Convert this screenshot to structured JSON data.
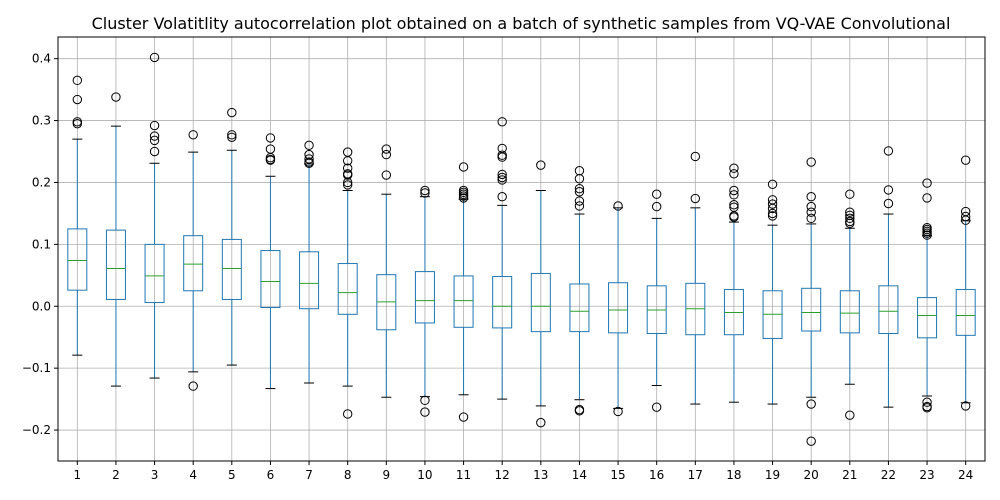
{
  "chart_data": {
    "type": "boxplot",
    "title": "Cluster Volatitlity autocorrelation plot obtained on a batch of synthetic samples from VQ-VAE Convolutional",
    "xlabel": "",
    "ylabel": "",
    "ylim": [
      -0.25,
      0.435
    ],
    "yticks": [
      -0.2,
      -0.1,
      0.0,
      0.1,
      0.2,
      0.3,
      0.4
    ],
    "ytick_labels": [
      "−0.2",
      "−0.1",
      "0.0",
      "0.1",
      "0.2",
      "0.3",
      "0.4"
    ],
    "grid": true,
    "colors": {
      "box": "#1f77b4",
      "median": "#2ca02c",
      "whisker": "#1f77b4",
      "cap": "#000000",
      "grid": "#b0b0b0"
    },
    "categories": [
      "1",
      "2",
      "3",
      "4",
      "5",
      "6",
      "7",
      "8",
      "9",
      "10",
      "11",
      "12",
      "13",
      "14",
      "15",
      "16",
      "17",
      "18",
      "19",
      "20",
      "21",
      "22",
      "23",
      "24"
    ],
    "boxes": [
      {
        "low": -0.079,
        "q1": 0.026,
        "median": 0.074,
        "q3": 0.125,
        "high": 0.27,
        "outliers": [
          0.365,
          0.334,
          0.298,
          0.295
        ]
      },
      {
        "low": -0.129,
        "q1": 0.011,
        "median": 0.061,
        "q3": 0.123,
        "high": 0.291,
        "outliers": [
          0.338
        ]
      },
      {
        "low": -0.116,
        "q1": 0.006,
        "median": 0.049,
        "q3": 0.1,
        "high": 0.231,
        "outliers": [
          0.402,
          0.292,
          0.275,
          0.268,
          0.25
        ]
      },
      {
        "low": -0.106,
        "q1": 0.025,
        "median": 0.068,
        "q3": 0.114,
        "high": 0.249,
        "outliers": [
          0.277,
          -0.129
        ]
      },
      {
        "low": -0.095,
        "q1": 0.011,
        "median": 0.061,
        "q3": 0.108,
        "high": 0.252,
        "outliers": [
          0.313,
          0.277,
          0.273
        ]
      },
      {
        "low": -0.133,
        "q1": -0.002,
        "median": 0.04,
        "q3": 0.09,
        "high": 0.21,
        "outliers": [
          0.272,
          0.254,
          0.24,
          0.237,
          0.236
        ]
      },
      {
        "low": -0.124,
        "q1": -0.004,
        "median": 0.037,
        "q3": 0.088,
        "high": 0.23,
        "outliers": [
          0.26,
          0.245,
          0.238,
          0.233,
          0.231
        ]
      },
      {
        "low": -0.129,
        "q1": -0.013,
        "median": 0.022,
        "q3": 0.069,
        "high": 0.187,
        "outliers": [
          0.249,
          0.235,
          0.223,
          0.214,
          0.212,
          0.2,
          0.196,
          -0.174
        ]
      },
      {
        "low": -0.147,
        "q1": -0.038,
        "median": 0.007,
        "q3": 0.051,
        "high": 0.181,
        "outliers": [
          0.254,
          0.245,
          0.212
        ]
      },
      {
        "low": -0.146,
        "q1": -0.027,
        "median": 0.009,
        "q3": 0.056,
        "high": 0.177,
        "outliers": [
          0.187,
          0.183,
          -0.152,
          -0.171
        ]
      },
      {
        "low": -0.143,
        "q1": -0.034,
        "median": 0.009,
        "q3": 0.049,
        "high": 0.173,
        "outliers": [
          0.225,
          0.187,
          0.184,
          0.181,
          0.178,
          0.175,
          -0.179
        ]
      },
      {
        "low": -0.15,
        "q1": -0.035,
        "median": 0.0,
        "q3": 0.048,
        "high": 0.163,
        "outliers": [
          0.298,
          0.255,
          0.244,
          0.241,
          0.213,
          0.208,
          0.204,
          0.177
        ]
      },
      {
        "low": -0.161,
        "q1": -0.041,
        "median": 0.0,
        "q3": 0.053,
        "high": 0.187,
        "outliers": [
          0.228,
          -0.188
        ]
      },
      {
        "low": -0.151,
        "q1": -0.041,
        "median": -0.008,
        "q3": 0.036,
        "high": 0.149,
        "outliers": [
          0.219,
          0.206,
          0.19,
          0.185,
          0.17,
          0.162,
          -0.167,
          -0.169
        ]
      },
      {
        "low": -0.165,
        "q1": -0.043,
        "median": -0.006,
        "q3": 0.038,
        "high": 0.159,
        "outliers": [
          0.162,
          -0.17
        ]
      },
      {
        "low": -0.128,
        "q1": -0.044,
        "median": -0.006,
        "q3": 0.033,
        "high": 0.142,
        "outliers": [
          0.181,
          0.161,
          -0.163
        ]
      },
      {
        "low": -0.158,
        "q1": -0.046,
        "median": -0.004,
        "q3": 0.037,
        "high": 0.159,
        "outliers": [
          0.242,
          0.174
        ]
      },
      {
        "low": -0.155,
        "q1": -0.046,
        "median": -0.01,
        "q3": 0.027,
        "high": 0.136,
        "outliers": [
          0.223,
          0.214,
          0.187,
          0.18,
          0.164,
          0.16,
          0.146,
          0.144
        ]
      },
      {
        "low": -0.158,
        "q1": -0.052,
        "median": -0.013,
        "q3": 0.025,
        "high": 0.131,
        "outliers": [
          0.197,
          0.172,
          0.165,
          0.158,
          0.15,
          0.146
        ]
      },
      {
        "low": -0.147,
        "q1": -0.04,
        "median": -0.01,
        "q3": 0.029,
        "high": 0.133,
        "outliers": [
          0.233,
          0.177,
          0.161,
          0.152,
          0.142,
          -0.158,
          -0.218
        ]
      },
      {
        "low": -0.126,
        "q1": -0.043,
        "median": -0.011,
        "q3": 0.025,
        "high": 0.126,
        "outliers": [
          0.181,
          0.152,
          0.147,
          0.142,
          0.137,
          0.134,
          -0.176
        ]
      },
      {
        "low": -0.163,
        "q1": -0.044,
        "median": -0.008,
        "q3": 0.033,
        "high": 0.149,
        "outliers": [
          0.251,
          0.188,
          0.166
        ]
      },
      {
        "low": -0.145,
        "q1": -0.051,
        "median": -0.015,
        "q3": 0.014,
        "high": 0.114,
        "outliers": [
          0.199,
          0.175,
          0.127,
          0.124,
          0.121,
          0.118,
          0.115,
          -0.155,
          -0.162,
          -0.164
        ]
      },
      {
        "low": -0.156,
        "q1": -0.047,
        "median": -0.015,
        "q3": 0.027,
        "high": 0.138,
        "outliers": [
          0.236,
          0.153,
          0.145,
          0.139,
          -0.161
        ]
      }
    ]
  }
}
